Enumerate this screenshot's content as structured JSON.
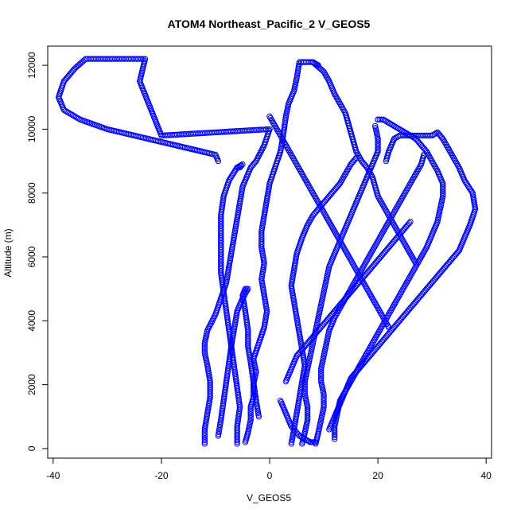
{
  "chart_data": {
    "type": "scatter",
    "title": "ATOM4 Northeast_Pacific_2 V_GEOS5",
    "xlabel": "V_GEOS5",
    "ylabel": "Altitude (m)",
    "xlim": [
      -41,
      41
    ],
    "ylim": [
      -300,
      12600
    ],
    "xticks": [
      -40,
      -20,
      0,
      20,
      40
    ],
    "yticks": [
      0,
      2000,
      4000,
      6000,
      8000,
      10000,
      12000
    ],
    "grid": false,
    "marker": "open-circle",
    "marker_color": "#0000ff",
    "series": [
      {
        "x": [
          -12,
          -12,
          -11.5,
          -11,
          -11,
          -11.5,
          -12,
          -12,
          -11.5,
          -10,
          -9,
          -8,
          -7.5,
          -7,
          -6.5,
          -6,
          -5.5,
          -5,
          -3.5,
          -2.5,
          -1,
          0,
          -20,
          -24,
          -23,
          -24,
          -34,
          -36,
          -38,
          -39,
          -38,
          -35,
          -30,
          -25,
          -20,
          -15,
          -10,
          -9.5
        ],
        "y": [
          150,
          600,
          1100,
          1600,
          2100,
          2600,
          3000,
          3300,
          3700,
          4200,
          4700,
          5200,
          5700,
          6200,
          6700,
          7200,
          7700,
          8200,
          8800,
          9000,
          9500,
          10000,
          9800,
          11500,
          12200,
          12200,
          12200,
          11900,
          11500,
          11000,
          10600,
          10300,
          10000,
          9800,
          9600,
          9400,
          9200,
          9000
        ]
      },
      {
        "x": [
          -6,
          -6,
          -5.5,
          -6,
          -6.5,
          -7,
          -7.5,
          -8,
          -8.5,
          -9,
          -9,
          -9,
          -9,
          -8.5,
          -7.5,
          -6,
          -5,
          -5.5,
          -6,
          -6
        ],
        "y": [
          150,
          700,
          1300,
          1900,
          2500,
          3100,
          3700,
          4300,
          4900,
          5500,
          6100,
          6700,
          7300,
          7900,
          8400,
          8800,
          8900,
          8800,
          8800,
          8800
        ]
      },
      {
        "x": [
          -9.5,
          -9,
          -8.5,
          -8,
          -7.5,
          -7,
          -6.5,
          -6,
          -5,
          -4,
          -4.5,
          -5,
          -4.5,
          -4,
          -4,
          -3.5,
          -3,
          -2.5,
          -2
        ],
        "y": [
          400,
          900,
          1500,
          2100,
          2700,
          3300,
          3800,
          4300,
          4700,
          5000,
          5000,
          4800,
          4300,
          3700,
          3200,
          2700,
          2100,
          1500,
          1000
        ]
      },
      {
        "x": [
          -4.5,
          -4,
          -3.5,
          -3.5,
          -3,
          -3,
          -2.5,
          -3,
          -2,
          -1,
          -0.5,
          -1,
          -1.5,
          -1,
          -1.5,
          -1.5,
          -1,
          -0.5,
          0,
          1,
          2,
          2.5,
          3,
          3.5,
          4.5,
          5,
          5.5,
          7,
          8,
          9
        ],
        "y": [
          200,
          500,
          900,
          1300,
          1600,
          2000,
          2400,
          2800,
          3300,
          3800,
          4300,
          4800,
          5300,
          5800,
          6300,
          6800,
          7300,
          7800,
          8300,
          8800,
          9300,
          9800,
          10400,
          10800,
          11200,
          11600,
          12100,
          12100,
          12100,
          12000
        ]
      },
      {
        "x": [
          8,
          10,
          11,
          12,
          13,
          14,
          14.5,
          15,
          15.5,
          16,
          17,
          18,
          19,
          19.5,
          20,
          21,
          22,
          23,
          24,
          25,
          26,
          27
        ],
        "y": [
          12100,
          11800,
          11500,
          11100,
          10800,
          10500,
          10200,
          9900,
          9600,
          9300,
          9000,
          8800,
          8500,
          8200,
          7900,
          7600,
          7300,
          7000,
          6700,
          6400,
          6100,
          5800
        ]
      },
      {
        "x": [
          0,
          1,
          2,
          3,
          4,
          5,
          6,
          7,
          8,
          9,
          10,
          11,
          12,
          13,
          14,
          15,
          16,
          17,
          18,
          19,
          20,
          21,
          22
        ],
        "y": [
          10400,
          10100,
          9800,
          9500,
          9200,
          8900,
          8600,
          8300,
          8000,
          7700,
          7400,
          7100,
          6800,
          6500,
          6200,
          5900,
          5600,
          5300,
          5000,
          4700,
          4400,
          4100,
          3800
        ]
      },
      {
        "x": [
          4,
          4.5,
          5,
          5.5,
          6,
          6.5,
          6,
          5.5,
          5,
          4.5,
          4,
          4.5,
          5,
          6,
          7,
          8,
          9,
          10,
          11,
          12,
          13,
          14,
          15,
          16
        ],
        "y": [
          150,
          600,
          1100,
          1600,
          2100,
          2600,
          3100,
          3600,
          4100,
          4600,
          5100,
          5600,
          6100,
          6600,
          7000,
          7300,
          7500,
          7700,
          7900,
          8100,
          8300,
          8600,
          8900,
          9100
        ]
      },
      {
        "x": [
          6,
          6.5,
          7,
          7,
          6.5,
          6.5,
          7,
          7.5,
          8,
          8.5,
          9,
          9.5,
          10,
          10.5,
          11,
          12,
          13,
          14,
          15,
          16,
          17,
          18,
          19,
          20,
          20,
          19.5
        ],
        "y": [
          150,
          500,
          900,
          1300,
          1700,
          2100,
          2500,
          2900,
          3300,
          3700,
          4100,
          4500,
          4900,
          5300,
          5700,
          6100,
          6500,
          6900,
          7300,
          7700,
          8100,
          8500,
          8900,
          9300,
          9700,
          10100
        ]
      },
      {
        "x": [
          8.5,
          9,
          9.5,
          10,
          10,
          9.5,
          9.5,
          10,
          10.5,
          11,
          12,
          13,
          14,
          15,
          16,
          17,
          18,
          19,
          20,
          21,
          22,
          23,
          24,
          25,
          26,
          27,
          28,
          28.5
        ],
        "y": [
          150,
          500,
          900,
          1300,
          1700,
          2100,
          2500,
          2900,
          3300,
          3700,
          4100,
          4400,
          4700,
          5000,
          5300,
          5600,
          5900,
          6200,
          6500,
          6800,
          7100,
          7400,
          7700,
          8000,
          8300,
          8600,
          8900,
          9200
        ]
      },
      {
        "x": [
          12,
          12,
          12.5,
          13,
          14,
          15,
          16,
          17,
          18,
          19,
          20,
          21,
          22,
          23,
          24,
          25,
          26,
          27,
          28,
          29,
          30,
          31,
          31.5,
          32,
          32,
          31,
          30,
          29,
          28,
          27,
          26,
          25,
          24,
          23,
          22,
          21,
          20,
          20
        ],
        "y": [
          300,
          700,
          1100,
          1500,
          1800,
          2100,
          2400,
          2700,
          3000,
          3300,
          3600,
          3900,
          4200,
          4500,
          4800,
          5100,
          5400,
          5700,
          6000,
          6300,
          6700,
          7100,
          7500,
          7900,
          8300,
          8700,
          9000,
          9300,
          9500,
          9700,
          9800,
          9900,
          10000,
          10100,
          10200,
          10300,
          10300,
          10300
        ]
      },
      {
        "x": [
          11,
          12,
          13,
          14,
          15,
          17,
          19,
          21,
          23,
          25,
          27,
          29,
          31,
          33,
          35,
          36,
          37,
          38,
          37.5,
          36,
          35,
          34,
          33,
          32,
          31,
          30,
          29,
          28,
          27,
          26,
          25,
          24,
          23,
          22,
          21.5
        ],
        "y": [
          600,
          1000,
          1400,
          1800,
          2200,
          2600,
          3000,
          3400,
          3800,
          4200,
          4600,
          5000,
          5400,
          5800,
          6200,
          6600,
          7000,
          7500,
          8000,
          8400,
          8800,
          9100,
          9400,
          9700,
          9900,
          9800,
          9800,
          9800,
          9800,
          9800,
          9800,
          9800,
          9700,
          9300,
          9000
        ]
      },
      {
        "x": [
          3,
          3.5,
          4,
          4.5,
          5,
          6,
          7,
          8,
          9,
          10,
          11,
          12,
          13,
          14,
          15,
          16,
          17,
          18,
          19,
          20,
          21,
          22,
          23,
          24,
          25,
          26
        ],
        "y": [
          2100,
          2300,
          2500,
          2700,
          2900,
          3100,
          3300,
          3500,
          3700,
          3900,
          4100,
          4300,
          4500,
          4700,
          4900,
          5100,
          5300,
          5500,
          5700,
          5900,
          6100,
          6300,
          6500,
          6700,
          6900,
          7100
        ]
      },
      {
        "x": [
          2,
          2.5,
          3,
          3.5,
          4,
          4.5,
          5,
          5.5,
          6,
          6.5,
          7,
          7.5,
          8,
          8.5
        ],
        "y": [
          1500,
          1300,
          1100,
          900,
          700,
          600,
          500,
          400,
          350,
          300,
          250,
          200,
          200,
          200
        ]
      }
    ]
  }
}
